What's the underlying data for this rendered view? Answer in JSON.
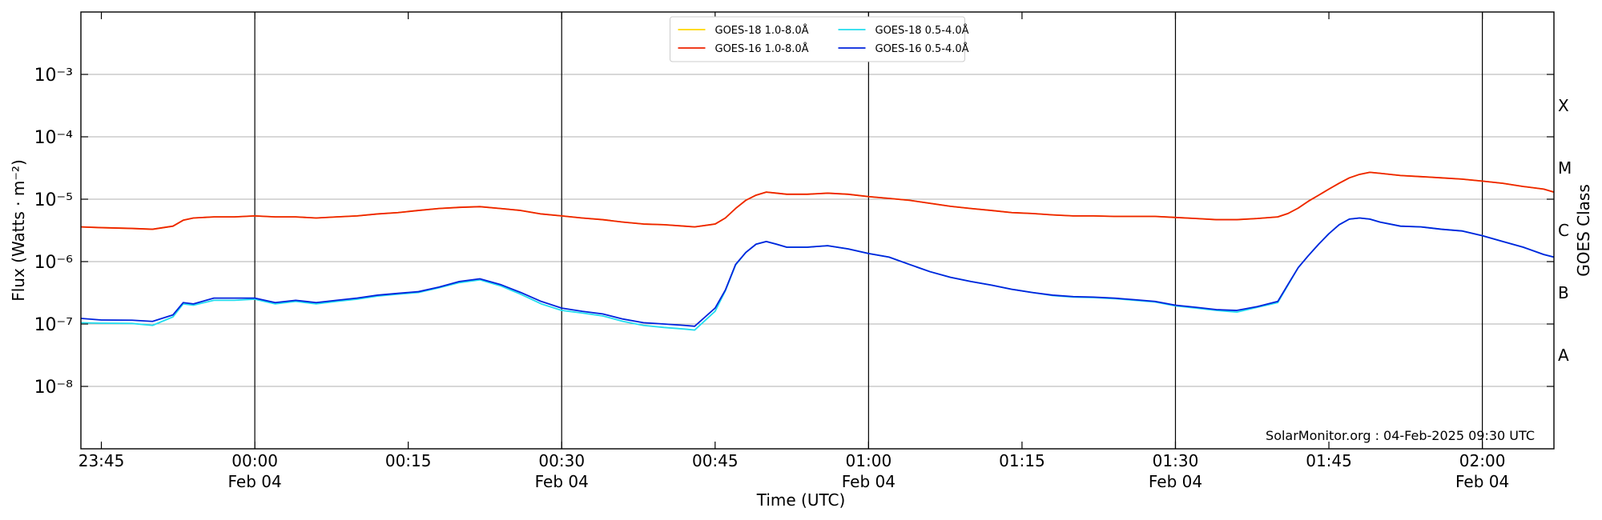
{
  "chart_data": {
    "type": "line",
    "xlabel": "Time (UTC)",
    "ylabel": "Flux (Watts · m⁻²)",
    "y2label": "GOES Class",
    "annotation": "SolarMonitor.org : 04-Feb-2025 09:30 UTC",
    "log_y": true,
    "grid": true,
    "legend": "upper center",
    "ylim": [
      1e-09,
      0.01
    ],
    "yticks": [
      {
        "value": 1e-08,
        "label": "10⁻⁸"
      },
      {
        "value": 1e-07,
        "label": "10⁻⁷"
      },
      {
        "value": 1e-06,
        "label": "10⁻⁶"
      },
      {
        "value": 1e-05,
        "label": "10⁻⁵"
      },
      {
        "value": 0.0001,
        "label": "10⁻⁴"
      },
      {
        "value": 0.001,
        "label": "10⁻³"
      }
    ],
    "y2lim": [
      1e-09,
      0.01
    ],
    "y2ticks": [
      {
        "value": 3.1623e-08,
        "label": "A"
      },
      {
        "value": 3.1623e-07,
        "label": "B"
      },
      {
        "value": 3.1623e-06,
        "label": "C"
      },
      {
        "value": 3.1623e-05,
        "label": "M"
      },
      {
        "value": 0.00031623,
        "label": "X"
      }
    ],
    "xlim": [
      "23:43",
      "02:07"
    ],
    "xticks": [
      {
        "value": "23:45",
        "label": "23:45"
      },
      {
        "value": "00:00",
        "label": "00:00\nFeb 04"
      },
      {
        "value": "00:15",
        "label": "00:15"
      },
      {
        "value": "00:30",
        "label": "00:30\nFeb 04"
      },
      {
        "value": "00:45",
        "label": "00:45"
      },
      {
        "value": "01:00",
        "label": "01:00\nFeb 04"
      },
      {
        "value": "01:15",
        "label": "01:15"
      },
      {
        "value": "01:30",
        "label": "01:30\nFeb 04"
      },
      {
        "value": "01:45",
        "label": "01:45"
      },
      {
        "value": "02:00",
        "label": "02:00\nFeb 04"
      }
    ],
    "vlines": [
      "00:00",
      "00:30",
      "01:00",
      "01:30",
      "02:00"
    ],
    "x": [
      "23:43",
      "23:45",
      "23:48",
      "23:50",
      "23:52",
      "23:53",
      "23:54",
      "23:56",
      "23:58",
      "00:00",
      "00:02",
      "00:04",
      "00:06",
      "00:08",
      "00:10",
      "00:12",
      "00:14",
      "00:16",
      "00:18",
      "00:20",
      "00:22",
      "00:24",
      "00:26",
      "00:28",
      "00:30",
      "00:32",
      "00:34",
      "00:36",
      "00:38",
      "00:40",
      "00:42",
      "00:43",
      "00:45",
      "00:46",
      "00:47",
      "00:48",
      "00:49",
      "00:50",
      "00:51",
      "00:52",
      "00:54",
      "00:56",
      "00:58",
      "01:00",
      "01:02",
      "01:04",
      "01:06",
      "01:08",
      "01:10",
      "01:12",
      "01:14",
      "01:16",
      "01:18",
      "01:20",
      "01:22",
      "01:24",
      "01:26",
      "01:28",
      "01:30",
      "01:32",
      "01:34",
      "01:36",
      "01:38",
      "01:40",
      "01:41",
      "01:42",
      "01:43",
      "01:44",
      "01:45",
      "01:46",
      "01:47",
      "01:48",
      "01:49",
      "01:50",
      "01:52",
      "01:54",
      "01:56",
      "01:58",
      "02:00",
      "02:02",
      "02:04",
      "02:06",
      "02:07"
    ],
    "series": [
      {
        "name": "GOES-18 1.0-8.0Å",
        "color": "#ffd700",
        "values": [
          3.6e-06,
          3.5e-06,
          3.4e-06,
          3.3e-06,
          3.7e-06,
          4.6e-06,
          5e-06,
          5.2e-06,
          5.2e-06,
          5.4e-06,
          5.2e-06,
          5.2e-06,
          5e-06,
          5.2e-06,
          5.4e-06,
          5.8e-06,
          6.1e-06,
          6.6e-06,
          7.1e-06,
          7.4e-06,
          7.6e-06,
          7.1e-06,
          6.6e-06,
          5.8e-06,
          5.4e-06,
          5e-06,
          4.7e-06,
          4.3e-06,
          4e-06,
          3.9e-06,
          3.7e-06,
          3.6e-06,
          4e-06,
          5e-06,
          7.1e-06,
          9.6e-06,
          1.16e-05,
          1.3e-05,
          1.25e-05,
          1.2e-05,
          1.2e-05,
          1.25e-05,
          1.2e-05,
          1.1e-05,
          1.03e-05,
          9.6e-06,
          8.6e-06,
          7.7e-06,
          7.1e-06,
          6.6e-06,
          6.1e-06,
          5.9e-06,
          5.6e-06,
          5.4e-06,
          5.4e-06,
          5.3e-06,
          5.3e-06,
          5.3e-06,
          5.1e-06,
          4.9e-06,
          4.7e-06,
          4.7e-06,
          4.9e-06,
          5.2e-06,
          5.9e-06,
          7.2e-06,
          9.3e-06,
          1.16e-05,
          1.45e-05,
          1.8e-05,
          2.2e-05,
          2.5e-05,
          2.7e-05,
          2.6e-05,
          2.4e-05,
          2.3e-05,
          2.2e-05,
          2.1e-05,
          1.95e-05,
          1.8e-05,
          1.6e-05,
          1.45e-05,
          1.3e-05
        ]
      },
      {
        "name": "GOES-16 1.0-8.0Å",
        "color": "#ee2200",
        "values": [
          3.6e-06,
          3.5e-06,
          3.4e-06,
          3.3e-06,
          3.7e-06,
          4.6e-06,
          5e-06,
          5.2e-06,
          5.2e-06,
          5.4e-06,
          5.2e-06,
          5.2e-06,
          5e-06,
          5.2e-06,
          5.4e-06,
          5.8e-06,
          6.1e-06,
          6.6e-06,
          7.1e-06,
          7.4e-06,
          7.6e-06,
          7.1e-06,
          6.6e-06,
          5.8e-06,
          5.4e-06,
          5e-06,
          4.7e-06,
          4.3e-06,
          4e-06,
          3.9e-06,
          3.7e-06,
          3.6e-06,
          4e-06,
          5e-06,
          7.1e-06,
          9.6e-06,
          1.16e-05,
          1.3e-05,
          1.25e-05,
          1.2e-05,
          1.2e-05,
          1.25e-05,
          1.2e-05,
          1.1e-05,
          1.03e-05,
          9.6e-06,
          8.6e-06,
          7.7e-06,
          7.1e-06,
          6.6e-06,
          6.1e-06,
          5.9e-06,
          5.6e-06,
          5.4e-06,
          5.4e-06,
          5.3e-06,
          5.3e-06,
          5.3e-06,
          5.1e-06,
          4.9e-06,
          4.7e-06,
          4.7e-06,
          4.9e-06,
          5.2e-06,
          5.9e-06,
          7.2e-06,
          9.3e-06,
          1.16e-05,
          1.45e-05,
          1.8e-05,
          2.2e-05,
          2.5e-05,
          2.7e-05,
          2.6e-05,
          2.4e-05,
          2.3e-05,
          2.2e-05,
          2.1e-05,
          1.95e-05,
          1.8e-05,
          1.6e-05,
          1.45e-05,
          1.3e-05
        ]
      },
      {
        "name": "GOES-18 0.5-4.0Å",
        "color": "#22ddee",
        "values": [
          1.05e-07,
          1.03e-07,
          1.02e-07,
          9.5e-08,
          1.3e-07,
          2.1e-07,
          2e-07,
          2.4e-07,
          2.4e-07,
          2.5e-07,
          2.1e-07,
          2.3e-07,
          2.1e-07,
          2.3e-07,
          2.5e-07,
          2.8e-07,
          3e-07,
          3.2e-07,
          3.8e-07,
          4.6e-07,
          5.1e-07,
          4.1e-07,
          3e-07,
          2.1e-07,
          1.65e-07,
          1.5e-07,
          1.35e-07,
          1.1e-07,
          9.5e-08,
          8.8e-08,
          8.3e-08,
          8e-08,
          1.6e-07,
          3.4e-07,
          8.8e-07,
          1.4e-06,
          1.9e-06,
          2.1e-06,
          1.9e-06,
          1.7e-06,
          1.7e-06,
          1.8e-06,
          1.6e-06,
          1.35e-06,
          1.18e-06,
          9e-07,
          6.9e-07,
          5.6e-07,
          4.8e-07,
          4.2e-07,
          3.6e-07,
          3.2e-07,
          2.85e-07,
          2.7e-07,
          2.65e-07,
          2.55e-07,
          2.4e-07,
          2.25e-07,
          1.95e-07,
          1.8e-07,
          1.65e-07,
          1.55e-07,
          1.85e-07,
          2.2e-07,
          4.2e-07,
          8e-07,
          1.25e-06,
          1.9e-06,
          2.8e-06,
          3.9e-06,
          4.8e-06,
          5e-06,
          4.8e-06,
          4.3e-06,
          3.7e-06,
          3.6e-06,
          3.3e-06,
          3.1e-06,
          2.6e-06,
          2.1e-06,
          1.7e-06,
          1.3e-06,
          1.18e-06
        ]
      },
      {
        "name": "GOES-16 0.5-4.0Å",
        "color": "#0022dd",
        "values": [
          1.23e-07,
          1.16e-07,
          1.15e-07,
          1.1e-07,
          1.4e-07,
          2.2e-07,
          2.1e-07,
          2.6e-07,
          2.6e-07,
          2.6e-07,
          2.2e-07,
          2.4e-07,
          2.2e-07,
          2.4e-07,
          2.6e-07,
          2.9e-07,
          3.1e-07,
          3.3e-07,
          3.9e-07,
          4.8e-07,
          5.3e-07,
          4.3e-07,
          3.2e-07,
          2.3e-07,
          1.8e-07,
          1.6e-07,
          1.45e-07,
          1.2e-07,
          1.05e-07,
          1e-07,
          9.5e-08,
          9.2e-08,
          1.8e-07,
          3.5e-07,
          9e-07,
          1.4e-06,
          1.9e-06,
          2.1e-06,
          1.9e-06,
          1.7e-06,
          1.7e-06,
          1.8e-06,
          1.6e-06,
          1.35e-06,
          1.18e-06,
          9e-07,
          6.9e-07,
          5.6e-07,
          4.8e-07,
          4.2e-07,
          3.6e-07,
          3.2e-07,
          2.9e-07,
          2.75e-07,
          2.7e-07,
          2.6e-07,
          2.45e-07,
          2.3e-07,
          2e-07,
          1.85e-07,
          1.7e-07,
          1.65e-07,
          1.9e-07,
          2.3e-07,
          4.3e-07,
          8e-07,
          1.25e-06,
          1.9e-06,
          2.8e-06,
          3.9e-06,
          4.8e-06,
          5e-06,
          4.8e-06,
          4.3e-06,
          3.7e-06,
          3.6e-06,
          3.3e-06,
          3.1e-06,
          2.6e-06,
          2.1e-06,
          1.7e-06,
          1.3e-06,
          1.18e-06
        ]
      }
    ]
  }
}
